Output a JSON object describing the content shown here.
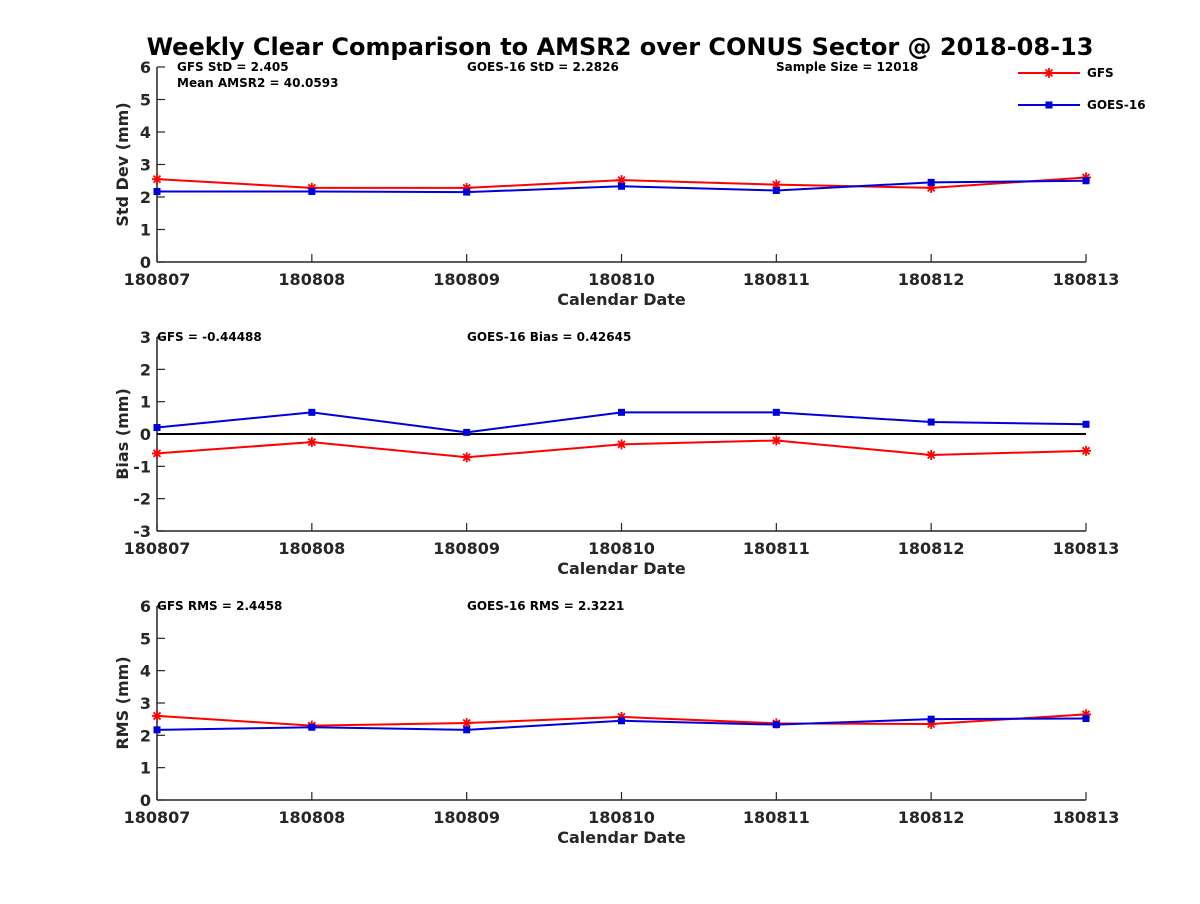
{
  "title": "Weekly Clear Comparison to AMSR2 over CONUS Sector @ 2018-08-13",
  "colors": {
    "gfs": "#ff0000",
    "goes": "#0000dd",
    "zero_line": "#000000"
  },
  "legend": [
    {
      "name": "GFS",
      "color": "#ff0000",
      "marker": "asterisk"
    },
    {
      "name": "GOES-16",
      "color": "#0000dd",
      "marker": "square"
    }
  ],
  "chart_data": [
    {
      "type": "line",
      "categories": [
        "180807",
        "180808",
        "180809",
        "180810",
        "180811",
        "180812",
        "180813"
      ],
      "xlabel": "Calendar Date",
      "ylabel": "Std Dev (mm)",
      "ylim": [
        0,
        6
      ],
      "yticks": [
        0,
        1,
        2,
        3,
        4,
        5,
        6
      ],
      "zero_line": false,
      "annotations": [
        "GFS StD = 2.405",
        "GOES-16 StD = 2.2826",
        "Sample Size = 12018",
        "Mean AMSR2 = 40.0593"
      ],
      "series": [
        {
          "name": "GFS",
          "values": [
            2.55,
            2.28,
            2.28,
            2.52,
            2.38,
            2.28,
            2.6
          ]
        },
        {
          "name": "GOES-16",
          "values": [
            2.17,
            2.17,
            2.15,
            2.33,
            2.2,
            2.45,
            2.5
          ]
        }
      ]
    },
    {
      "type": "line",
      "categories": [
        "180807",
        "180808",
        "180809",
        "180810",
        "180811",
        "180812",
        "180813"
      ],
      "xlabel": "Calendar Date",
      "ylabel": "Bias (mm)",
      "ylim": [
        -3,
        3
      ],
      "yticks": [
        -3,
        -2,
        -1,
        0,
        1,
        2,
        3
      ],
      "zero_line": true,
      "annotations": [
        "GFS = -0.44488",
        "GOES-16 Bias  = 0.42645"
      ],
      "series": [
        {
          "name": "GFS",
          "values": [
            -0.6,
            -0.25,
            -0.72,
            -0.32,
            -0.2,
            -0.65,
            -0.52
          ]
        },
        {
          "name": "GOES-16",
          "values": [
            0.2,
            0.67,
            0.05,
            0.67,
            0.67,
            0.37,
            0.3
          ]
        }
      ]
    },
    {
      "type": "line",
      "categories": [
        "180807",
        "180808",
        "180809",
        "180810",
        "180811",
        "180812",
        "180813"
      ],
      "xlabel": "Calendar Date",
      "ylabel": "RMS (mm)",
      "ylim": [
        0,
        6
      ],
      "yticks": [
        0,
        1,
        2,
        3,
        4,
        5,
        6
      ],
      "zero_line": false,
      "annotations": [
        "GFS RMS = 2.4458",
        "GOES-16 RMS = 2.3221"
      ],
      "series": [
        {
          "name": "GFS",
          "values": [
            2.6,
            2.3,
            2.38,
            2.57,
            2.37,
            2.35,
            2.65
          ]
        },
        {
          "name": "GOES-16",
          "values": [
            2.17,
            2.25,
            2.17,
            2.45,
            2.33,
            2.5,
            2.52
          ]
        }
      ]
    }
  ]
}
